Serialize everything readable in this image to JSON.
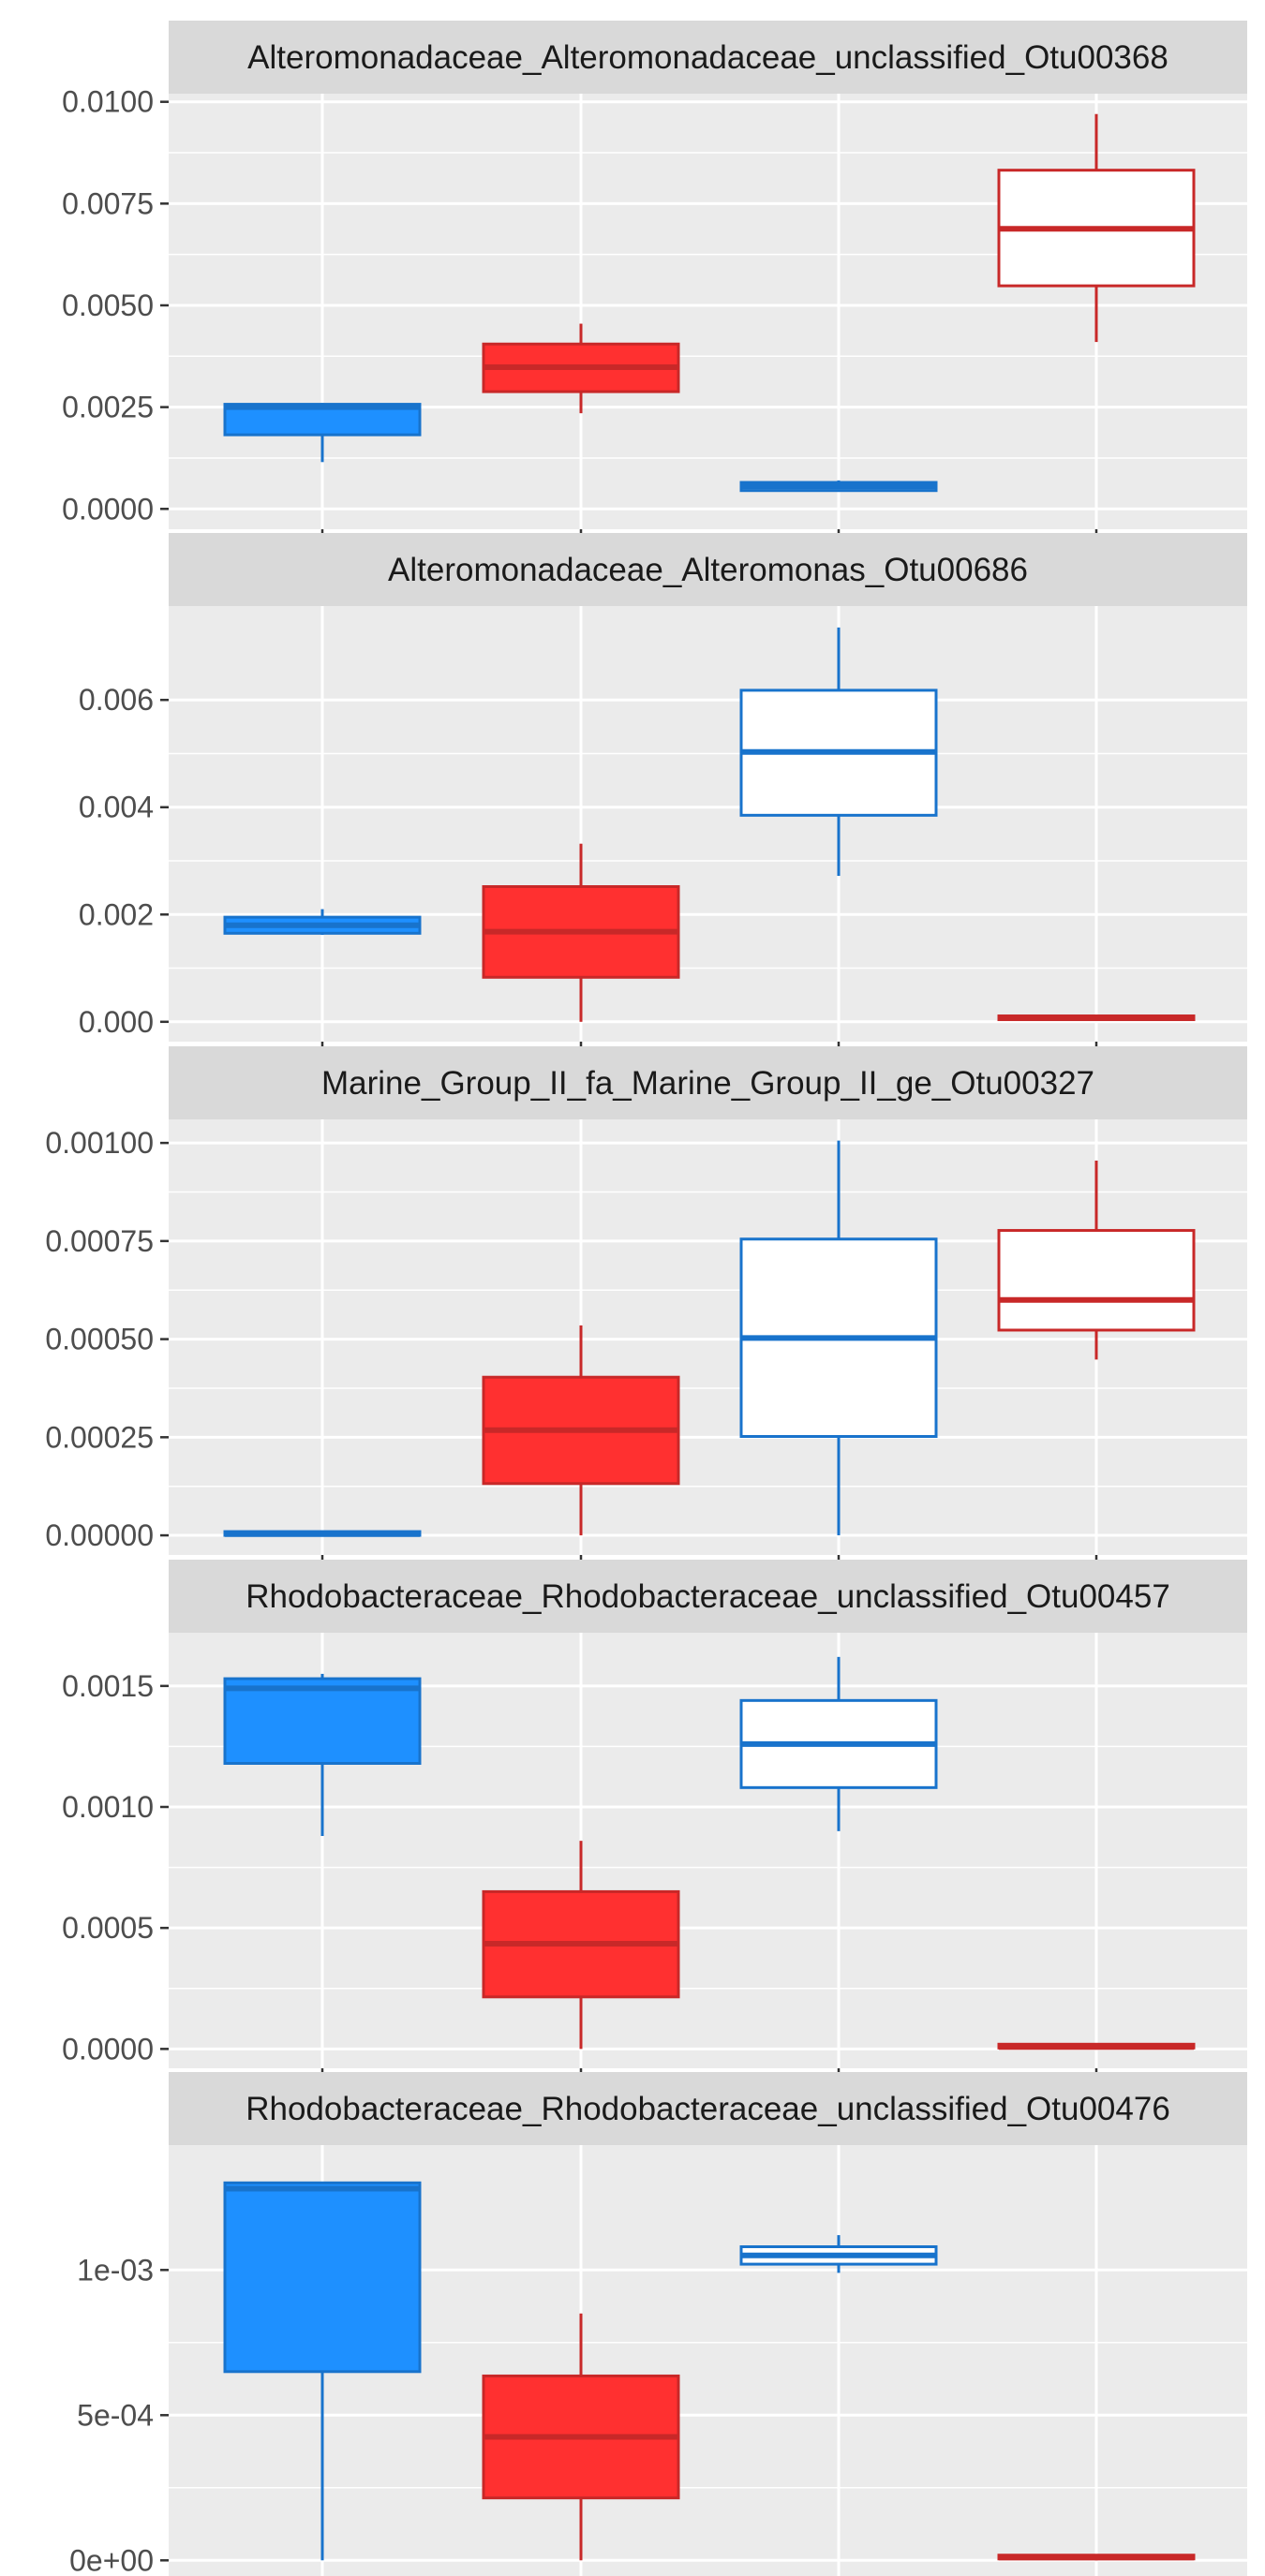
{
  "colors": {
    "panel_bg": "#ebebeb",
    "strip_bg": "#d9d9d9",
    "grid": "#ffffff",
    "tick": "#333333",
    "group_colors": [
      {
        "fill": "#1e90ff",
        "stroke": "#1873cc"
      },
      {
        "fill": "#ff3030",
        "stroke": "#c82828"
      },
      {
        "fill": "#ffffff",
        "stroke": "#1873cc"
      },
      {
        "fill": "#ffffff",
        "stroke": "#c82828"
      }
    ]
  },
  "chart_data": [
    {
      "type": "box",
      "title": "Alteromonadaceae_Alteromonadaceae_unclassified_Otu00368",
      "ylim": [
        -0.0005,
        0.0102
      ],
      "yticks": [
        0,
        0.0025,
        0.005,
        0.0075,
        0.01
      ],
      "ytick_labels": [
        "0.0000",
        "0.0025",
        "0.0050",
        "0.0075",
        "0.0100"
      ],
      "boxes": [
        {
          "q1": 0.00182,
          "median": 0.0025,
          "q3": 0.00257,
          "whisker_low": 0.00115,
          "whisker_high": 0.0026
        },
        {
          "q1": 0.00288,
          "median": 0.00348,
          "q3": 0.00405,
          "whisker_low": 0.00235,
          "whisker_high": 0.00455
        },
        {
          "q1": 0.00045,
          "median": 0.00055,
          "q3": 0.00065,
          "whisker_low": 0.00042,
          "whisker_high": 0.0007
        },
        {
          "q1": 0.00548,
          "median": 0.00688,
          "q3": 0.00832,
          "whisker_low": 0.0041,
          "whisker_high": 0.0097
        }
      ]
    },
    {
      "type": "box",
      "title": "Alteromonadaceae_Alteromonas_Otu00686",
      "ylim": [
        -0.00037,
        0.00775
      ],
      "yticks": [
        0,
        0.002,
        0.004,
        0.006
      ],
      "ytick_labels": [
        "0.000",
        "0.002",
        "0.004",
        "0.006"
      ],
      "boxes": [
        {
          "q1": 0.00165,
          "median": 0.0018,
          "q3": 0.00195,
          "whisker_low": 0.00162,
          "whisker_high": 0.0021
        },
        {
          "q1": 0.00083,
          "median": 0.00168,
          "q3": 0.00252,
          "whisker_low": 0.0,
          "whisker_high": 0.00332
        },
        {
          "q1": 0.00385,
          "median": 0.00503,
          "q3": 0.00618,
          "whisker_low": 0.00272,
          "whisker_high": 0.00735
        },
        {
          "q1": 4e-05,
          "median": 7e-05,
          "q3": 0.0001,
          "whisker_low": 3e-05,
          "whisker_high": 0.00012
        }
      ]
    },
    {
      "type": "box",
      "title": "Marine_Group_II_fa_Marine_Group_II_ge_Otu00327",
      "ylim": [
        -5e-05,
        0.00106
      ],
      "yticks": [
        0,
        0.00025,
        0.0005,
        0.00075,
        0.001
      ],
      "ytick_labels": [
        "0.00000",
        "0.00025",
        "0.00050",
        "0.00075",
        "0.00100"
      ],
      "boxes": [
        {
          "q1": 0.0,
          "median": 3e-06,
          "q3": 6e-06,
          "whisker_low": 0.0,
          "whisker_high": 7e-06
        },
        {
          "q1": 0.000132,
          "median": 0.000268,
          "q3": 0.000403,
          "whisker_low": 0.0,
          "whisker_high": 0.000535
        },
        {
          "q1": 0.000252,
          "median": 0.000503,
          "q3": 0.000755,
          "whisker_low": 0.0,
          "whisker_high": 0.001006
        },
        {
          "q1": 0.000523,
          "median": 0.0006,
          "q3": 0.000777,
          "whisker_low": 0.000448,
          "whisker_high": 0.000955
        }
      ]
    },
    {
      "type": "box",
      "title": "Rhodobacteraceae_Rhodobacteraceae_unclassified_Otu00457",
      "ylim": [
        -8e-05,
        0.00172
      ],
      "yticks": [
        0,
        0.0005,
        0.001,
        0.0015
      ],
      "ytick_labels": [
        "0.0000",
        "0.0005",
        "0.0010",
        "0.0015"
      ],
      "boxes": [
        {
          "q1": 0.00118,
          "median": 0.00149,
          "q3": 0.00153,
          "whisker_low": 0.00088,
          "whisker_high": 0.00155
        },
        {
          "q1": 0.000215,
          "median": 0.000435,
          "q3": 0.00065,
          "whisker_low": 0.0,
          "whisker_high": 0.00086
        },
        {
          "q1": 0.00108,
          "median": 0.00126,
          "q3": 0.00144,
          "whisker_low": 0.0009,
          "whisker_high": 0.00162
        },
        {
          "q1": 4e-06,
          "median": 8e-06,
          "q3": 1.2e-05,
          "whisker_low": 0.0,
          "whisker_high": 1.5e-05
        }
      ]
    },
    {
      "type": "box",
      "title": "Rhodobacteraceae_Rhodobacteraceae_unclassified_Otu00476",
      "ylim": [
        -7e-05,
        0.00143
      ],
      "yticks": [
        0,
        0.0005,
        0.001
      ],
      "ytick_labels": [
        "0e+00",
        "5e-04",
        "1e-03"
      ],
      "boxes": [
        {
          "q1": 0.00065,
          "median": 0.00128,
          "q3": 0.0013,
          "whisker_low": 0.0,
          "whisker_high": 0.0013
        },
        {
          "q1": 0.000215,
          "median": 0.000425,
          "q3": 0.000635,
          "whisker_low": 0.0,
          "whisker_high": 0.00085
        },
        {
          "q1": 0.00102,
          "median": 0.00105,
          "q3": 0.00108,
          "whisker_low": 0.00099,
          "whisker_high": 0.00112
        },
        {
          "q1": 5e-06,
          "median": 1e-05,
          "q3": 1.5e-05,
          "whisker_low": 0.0,
          "whisker_high": 2e-05
        }
      ]
    }
  ]
}
